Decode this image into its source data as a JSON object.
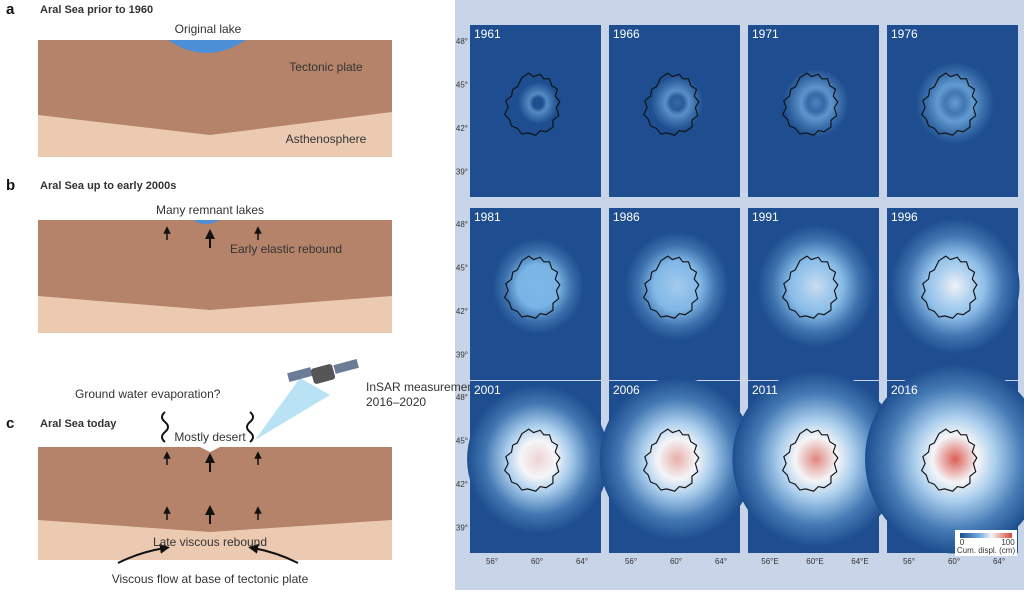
{
  "panels": [
    {
      "letter": "a",
      "title": "Aral Sea prior to 1960",
      "labels": [
        "Original lake",
        "Tectonic plate",
        "Asthenosphere"
      ]
    },
    {
      "letter": "b",
      "title": "Aral Sea up to early 2000s",
      "labels": [
        "Many remnant lakes",
        "Early elastic rebound"
      ]
    },
    {
      "letter": "c",
      "title": "Aral Sea today",
      "labels": [
        "Ground water evaporation?",
        "InSAR measurements",
        "2016–2020",
        "Mostly desert",
        "Late viscous rebound",
        "Viscous flow at base of tectonic plate"
      ]
    }
  ],
  "maps": {
    "years": [
      "1961",
      "1966",
      "1971",
      "1976",
      "1981",
      "1986",
      "1991",
      "1996",
      "2001",
      "2006",
      "2011",
      "2016"
    ],
    "lat_ticks": [
      "48°",
      "45°",
      "42°",
      "39°"
    ],
    "lon_ticks": [
      [
        "56°",
        "60°",
        "64°"
      ],
      [
        "56°",
        "60°",
        "64°"
      ],
      [
        "56°E",
        "60°E",
        "64°E"
      ],
      [
        "56°",
        "60°",
        "64°"
      ]
    ],
    "colorbar": {
      "min": "0",
      "max": "100",
      "label": "Cum. displ. (cm)"
    }
  }
}
